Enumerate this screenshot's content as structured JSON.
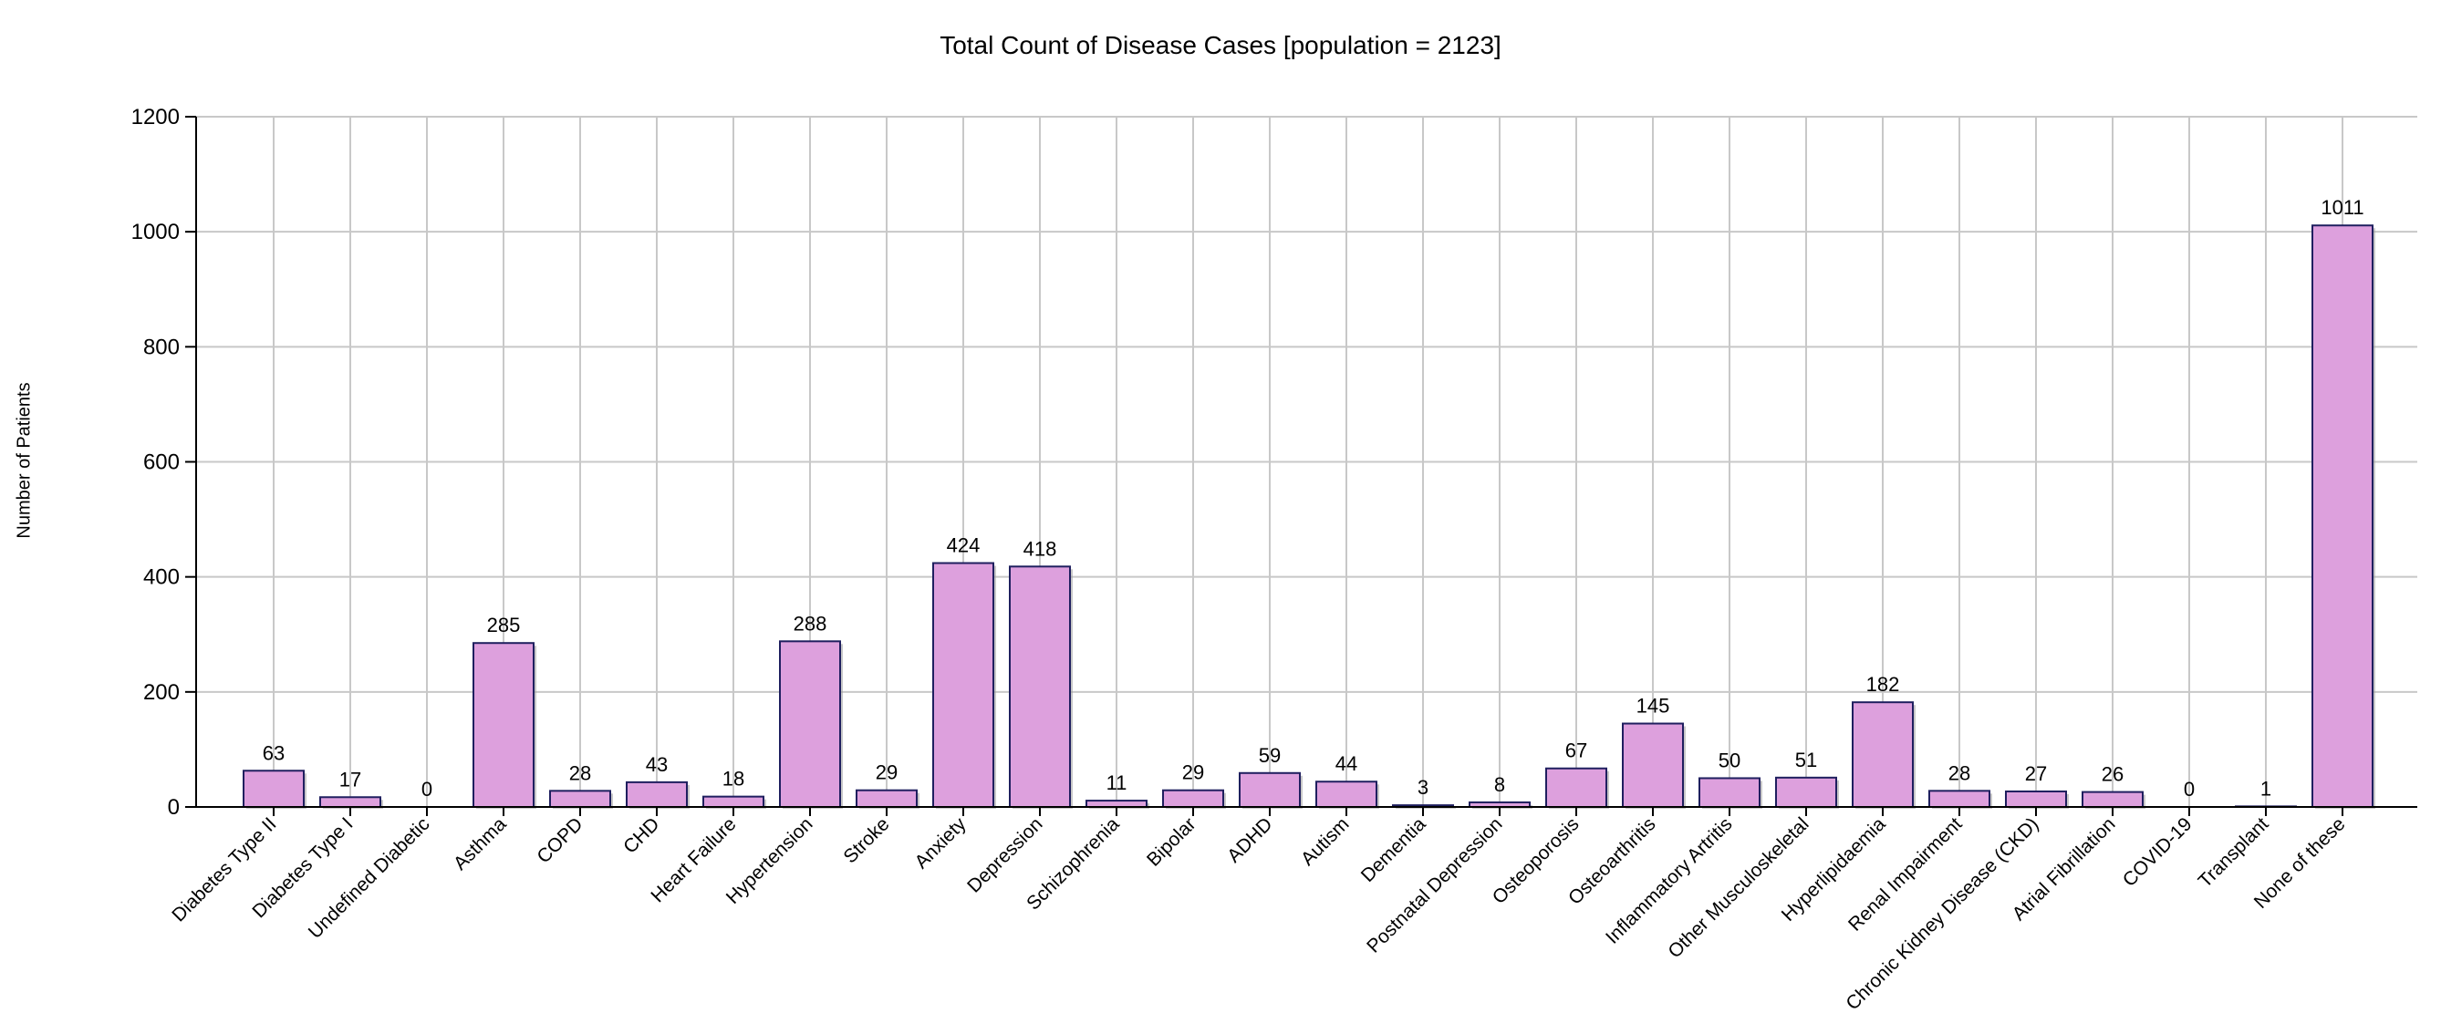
{
  "chart_data": {
    "type": "bar",
    "title": "Total Count of Disease Cases [population = 2123]",
    "xlabel": "",
    "ylabel": "Number of Patients",
    "ylim": [
      0,
      1200
    ],
    "yticks": [
      0,
      200,
      400,
      600,
      800,
      1000,
      1200
    ],
    "grid": true,
    "legend": "none",
    "categories": [
      "Diabetes Type II",
      "Diabetes Type I",
      "Undefined Diabetic",
      "Asthma",
      "COPD",
      "CHD",
      "Heart Failure",
      "Hypertension",
      "Stroke",
      "Anxiety",
      "Depression",
      "Schizophrenia",
      "Bipolar",
      "ADHD",
      "Autism",
      "Dementia",
      "Postnatal Depression",
      "Osteoporosis",
      "Osteoarthritis",
      "Inflammatory Artritis",
      "Other Musculoskeletal",
      "Hyperlipidaemia",
      "Renal Impairment",
      "Chronic Kidney Disease (CKD)",
      "Atrial Fibrillation",
      "COVID-19",
      "Transplant",
      "None of these"
    ],
    "values": [
      63,
      17,
      0,
      285,
      28,
      43,
      18,
      288,
      29,
      424,
      418,
      11,
      29,
      59,
      44,
      3,
      8,
      67,
      145,
      50,
      51,
      182,
      28,
      27,
      26,
      0,
      1,
      1011
    ],
    "colors": {
      "bar_fill": "#DDA0DD",
      "bar_stroke": "#1F1F5F",
      "grid": "#C8C8C8",
      "axis": "#000000"
    }
  }
}
